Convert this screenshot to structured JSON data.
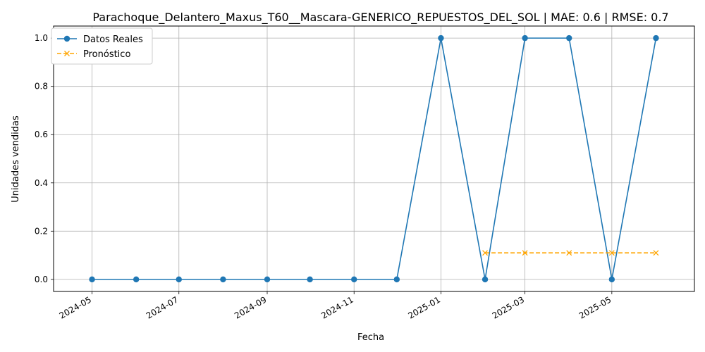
{
  "chart_data": {
    "type": "line",
    "title": "Parachoque_Delantero_Maxus_T60__Mascara-GENERICO_REPUESTOS_DEL_SOL | MAE: 0.6 | RMSE: 0.7",
    "xlabel": "Fecha",
    "ylabel": "Unidades vendidas",
    "xlim": [
      "2024-04-04",
      "2025-06-28"
    ],
    "ylim": [
      -0.05,
      1.05
    ],
    "grid": true,
    "legend_position": "upper-left",
    "x_ticks": [
      "2024-05",
      "2024-07",
      "2024-09",
      "2024-11",
      "2025-01",
      "2025-03",
      "2025-05"
    ],
    "y_ticks": [
      0.0,
      0.2,
      0.4,
      0.6,
      0.8,
      1.0
    ],
    "y_tick_labels": [
      "0.0",
      "0.2",
      "0.4",
      "0.6",
      "0.8",
      "1.0"
    ],
    "series": [
      {
        "name": "Datos Reales",
        "color": "#1f77b4",
        "marker": "circle",
        "linestyle": "solid",
        "x": [
          "2024-05-01",
          "2024-06-01",
          "2024-07-01",
          "2024-08-01",
          "2024-09-01",
          "2024-10-01",
          "2024-11-01",
          "2024-12-01",
          "2025-01-01",
          "2025-02-01",
          "2025-03-01",
          "2025-04-01",
          "2025-05-01",
          "2025-06-01"
        ],
        "values": [
          0,
          0,
          0,
          0,
          0,
          0,
          0,
          0,
          1,
          0,
          1,
          1,
          0,
          1
        ]
      },
      {
        "name": "Pronóstico",
        "color": "#ffa500",
        "marker": "x",
        "linestyle": "dashed",
        "x": [
          "2025-02-01",
          "2025-03-01",
          "2025-04-01",
          "2025-05-01",
          "2025-06-01"
        ],
        "values": [
          0.11,
          0.11,
          0.11,
          0.11,
          0.11
        ]
      }
    ]
  }
}
